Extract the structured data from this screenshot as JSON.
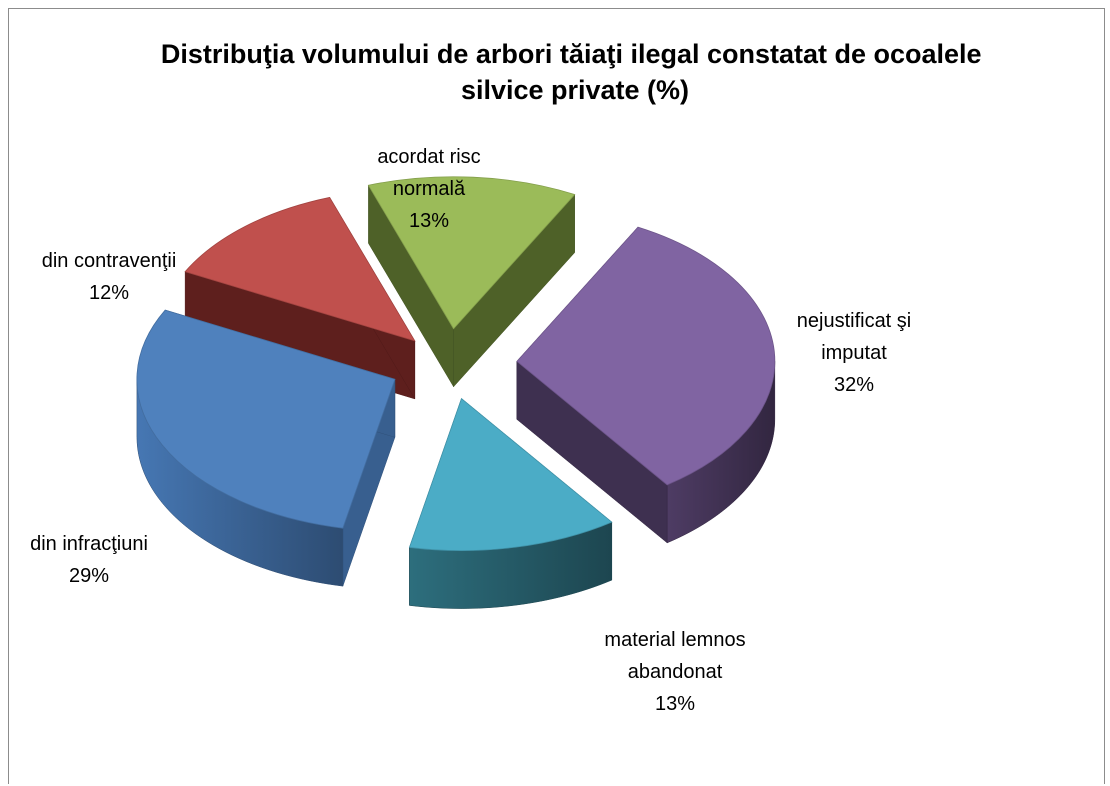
{
  "chart_data": {
    "type": "pie",
    "style": "3d-exploded",
    "title": "Distribuţia volumului de arbori tăiaţi ilegal constatat de ocoalele silvice private (%)",
    "title_lines": [
      "Distribuţia volumului de arbori tăiaţi ilegal constatat de ocoalele",
      "silvice private (%)"
    ],
    "unit": "%",
    "slices": [
      {
        "label_lines": [
          "nejustificat şi",
          "imputat"
        ],
        "percent_label": "32%",
        "value": 32,
        "color": "#8064A2",
        "side_color": "#3E3050"
      },
      {
        "label_lines": [
          "material lemnos",
          "abandonat"
        ],
        "percent_label": "13%",
        "value": 13,
        "color": "#4BACC6",
        "side_color": "#245864"
      },
      {
        "label_lines": [
          "din infracţiuni"
        ],
        "percent_label": "29%",
        "value": 29,
        "color": "#4F81BD",
        "side_color": "#385F8F"
      },
      {
        "label_lines": [
          "din contravenţii"
        ],
        "percent_label": "12%",
        "value": 12,
        "color": "#C0504D",
        "side_color": "#5E1F1D"
      },
      {
        "label_lines": [
          "acordat risc",
          "normală"
        ],
        "percent_label": "13%",
        "value": 13,
        "color": "#9BBB59",
        "side_color": "#4E6128"
      }
    ]
  }
}
